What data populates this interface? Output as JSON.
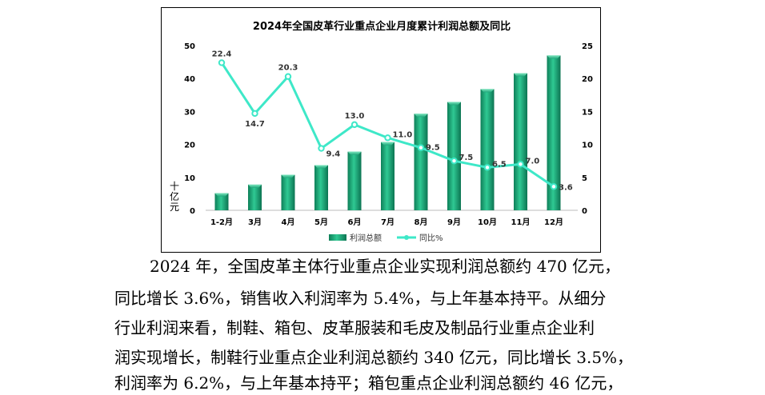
{
  "chart_data": {
    "type": "bar",
    "title": "2024年全国皮革行业重点企业月度累计利润总额及同比",
    "categories": [
      "1-2月",
      "3月",
      "4月",
      "5月",
      "6月",
      "7月",
      "8月",
      "9月",
      "10月",
      "11月",
      "12月"
    ],
    "ylabel": "十亿元",
    "ylim": [
      0,
      50
    ],
    "y_ticks": [
      0,
      10,
      20,
      30,
      40,
      50
    ],
    "y2lim": [
      0,
      25
    ],
    "y2_ticks": [
      0,
      5,
      10,
      15,
      20,
      25
    ],
    "grid": false,
    "legend_position": "bottom",
    "series": [
      {
        "name": "利润总额",
        "type": "bar",
        "axis": "left",
        "color": "#1fa67a",
        "values": [
          5.2,
          7.8,
          10.8,
          13.7,
          17.8,
          20.7,
          29.3,
          32.9,
          36.8,
          41.6,
          47.0
        ]
      },
      {
        "name": "同比%",
        "type": "line",
        "axis": "right",
        "color": "#3ee8c8",
        "values": [
          22.4,
          14.7,
          20.3,
          9.4,
          13.0,
          11.0,
          9.5,
          7.5,
          6.5,
          7.0,
          3.6
        ],
        "labels": [
          "22.4",
          "14.7",
          "20.3",
          "9.4",
          "13.0",
          "11.0",
          "9.5",
          "7.5",
          "6.5",
          "7.0",
          "3.6"
        ]
      }
    ]
  },
  "document": {
    "lines": [
      "2024 年，全国皮革主体行业重点企业实现利润总额约 470 亿元，",
      "同比增长 3.6%，销售收入利润率为 5.4%，与上年基本持平。从细分",
      "行业利润来看，制鞋、箱包、皮革服装和毛皮及制品行业重点企业利",
      "润实现增长，制鞋行业重点企业利润总额约 340 亿元，同比增长 3.5%，",
      "利润率为 6.2%，与上年基本持平；箱包重点企业利润总额约 46 亿元，"
    ]
  }
}
